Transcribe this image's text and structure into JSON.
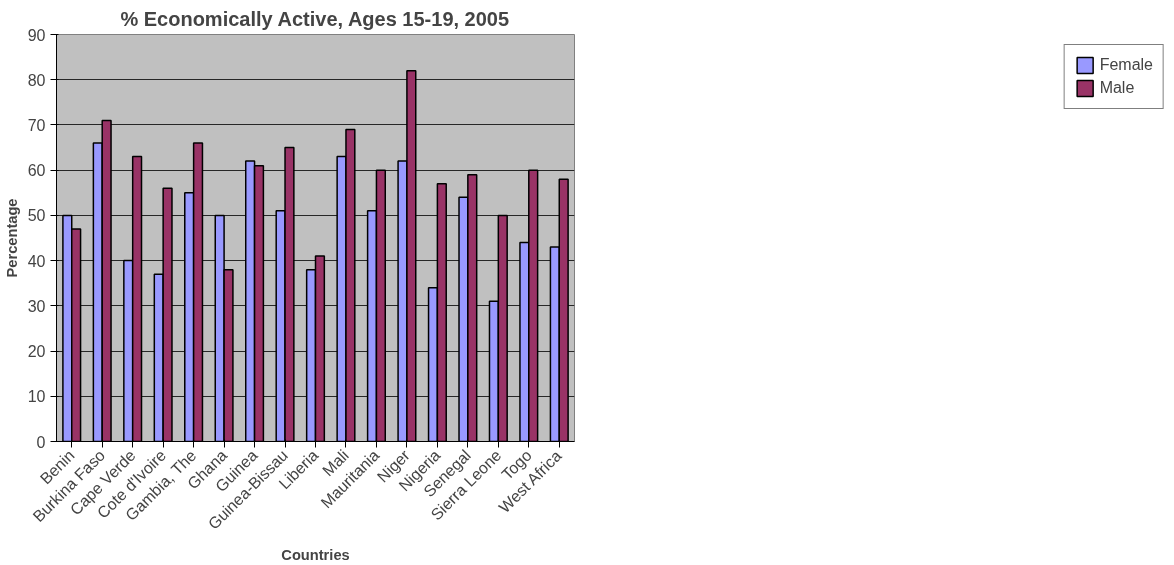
{
  "chart_data": {
    "type": "bar",
    "title": "% Economically Active, Ages 15-19, 2005",
    "xlabel": "Countries",
    "ylabel": "Percentage",
    "categories": [
      "Benin",
      "Burkina Faso",
      "Cape Verde",
      "Cote d'Ivoire",
      "Gambia, The",
      "Ghana",
      "Guinea",
      "Guinea-Bissau",
      "Liberia",
      "Mali",
      "Mauritania",
      "Niger",
      "Nigeria",
      "Senegal",
      "Sierra Leone",
      "Togo",
      "West Africa"
    ],
    "series": [
      {
        "name": "Female",
        "color": "#9999ff",
        "values": [
          50,
          66,
          40,
          37,
          55,
          50,
          62,
          51,
          38,
          63,
          51,
          62,
          34,
          54,
          31,
          44,
          43
        ]
      },
      {
        "name": "Male",
        "color": "#993366",
        "values": [
          47,
          71,
          63,
          56,
          66,
          38,
          61,
          65,
          41,
          69,
          60,
          82,
          57,
          59,
          50,
          60,
          58
        ]
      }
    ],
    "ylim": [
      0,
      90
    ],
    "yticks": [
      0,
      10,
      20,
      30,
      40,
      50,
      60,
      70,
      80,
      90
    ],
    "grid": "y",
    "legend": "right"
  }
}
